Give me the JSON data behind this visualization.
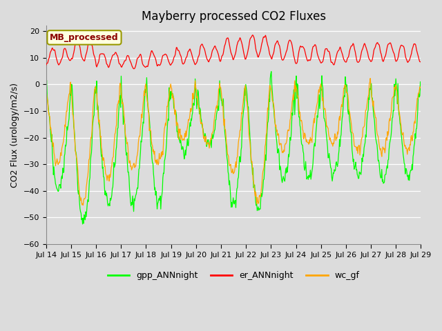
{
  "title": "Mayberry processed CO2 Fluxes",
  "ylabel": "CO2 Flux (urology/m2/s)",
  "ylim": [
    -60,
    22
  ],
  "yticks": [
    -60,
    -50,
    -40,
    -30,
    -20,
    -10,
    0,
    10,
    20
  ],
  "x_tick_labels": [
    "Jul 14",
    "Jul 15",
    "Jul 16",
    "Jul 17",
    "Jul 18",
    "Jul 19",
    "Jul 20",
    "Jul 21",
    "Jul 22",
    "Jul 23",
    "Jul 24",
    "Jul 25",
    "Jul 26",
    "Jul 27",
    "Jul 28",
    "Jul 29"
  ],
  "legend_labels": [
    "gpp_ANNnight",
    "er_ANNnight",
    "wc_gf"
  ],
  "line_colors": [
    "#00FF00",
    "#FF0000",
    "#FFA500"
  ],
  "background_color": "#DCDCDC",
  "annotation_text": "MB_processed",
  "annotation_color": "#8B0000",
  "annotation_bg": "#FFFFE0",
  "annotation_border": "#999900",
  "title_fontsize": 12,
  "label_fontsize": 9,
  "tick_fontsize": 8,
  "legend_fontsize": 9,
  "samples_per_day": 48
}
